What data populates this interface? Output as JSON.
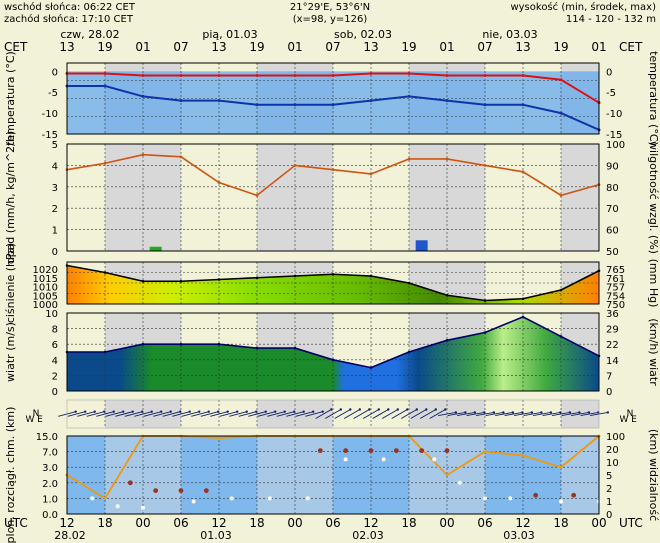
{
  "header": {
    "sunrise": "wschód słońca: 06:22 CET",
    "sunset": "zachód słońca: 17:10 CET",
    "coords": "21°29'E, 53°6'N",
    "grid": "(x=98, y=126)",
    "elevation_label": "wysokość (min, środek, max)",
    "elevation_values": "114 - 120 - 132 m"
  },
  "top_axis": {
    "tz": "CET",
    "days": [
      "czw, 28.02",
      "pią, 01.03",
      "sob, 02.03",
      "nie, 03.03"
    ],
    "hours": [
      "13",
      "19",
      "01",
      "07",
      "13",
      "19",
      "01",
      "07",
      "13",
      "19",
      "01",
      "07",
      "13",
      "19",
      "01"
    ]
  },
  "bottom_axis": {
    "tz": "UTC",
    "hours": [
      "12",
      "18",
      "00",
      "06",
      "12",
      "18",
      "00",
      "06",
      "12",
      "18",
      "00",
      "06",
      "12",
      "18",
      "00"
    ],
    "dates": [
      "28.02",
      "01.03",
      "02.03",
      "03.03"
    ]
  },
  "chart_data": [
    {
      "type": "line",
      "panel": "temperature",
      "ylabel": "temperatura (°C)",
      "ylim": [
        -15,
        2
      ],
      "ticks": [
        "0",
        "-5",
        "-10",
        "-15"
      ],
      "x_hours": [
        0,
        6,
        12,
        18,
        24,
        30,
        36,
        42,
        48,
        54,
        60,
        66,
        72,
        78,
        84
      ],
      "series": [
        {
          "values": [
            -0.5,
            -0.5,
            -1,
            -1,
            -1,
            -1,
            -1,
            -1,
            -0.5,
            -0.5,
            -1,
            -1,
            -1,
            -2,
            -7.5
          ]
        },
        {
          "values": [
            -3.5,
            -3.5,
            -6,
            -7,
            -7,
            -8,
            -8,
            -8,
            -7,
            -6,
            -7,
            -8,
            -8,
            -10,
            -14
          ]
        }
      ]
    },
    {
      "type": "line",
      "panel": "precipitation-humidity",
      "ylabel": "opad (mm/h, kg/m^2/h)",
      "ylabel_right": "wilgotność wzgl. (%)",
      "ylim": [
        0,
        5
      ],
      "ylim_right": [
        50,
        100
      ],
      "ticks_left": [
        "0",
        "1",
        "2",
        "3",
        "4",
        "5"
      ],
      "ticks_right": [
        "50",
        "60",
        "70",
        "80",
        "90",
        "100"
      ],
      "x_hours": [
        0,
        6,
        12,
        18,
        24,
        30,
        36,
        42,
        48,
        54,
        60,
        66,
        72,
        78,
        84
      ],
      "series": [
        {
          "values": [
            88,
            91,
            95,
            94,
            82,
            76,
            90,
            88,
            86,
            93,
            93,
            90,
            87,
            76,
            81
          ]
        }
      ],
      "precipitation_bars": [
        {
          "x": 14,
          "value": 0.2
        },
        {
          "x": 56,
          "value": 0.5
        }
      ]
    },
    {
      "type": "area",
      "panel": "pressure",
      "ylabel": "ciśnienie (hPa)",
      "ylabel_right": "(mm Hg)",
      "ylim": [
        1000,
        1024
      ],
      "ticks_left": [
        "1020",
        "1015",
        "1010",
        "1005",
        "1000"
      ],
      "ticks_right": [
        "765",
        "761",
        "757",
        "754",
        "750"
      ],
      "x_hours": [
        0,
        6,
        12,
        18,
        24,
        30,
        36,
        42,
        48,
        54,
        60,
        66,
        72,
        78,
        84
      ],
      "series": [
        {
          "values": [
            1022,
            1018,
            1013,
            1013,
            1014,
            1015,
            1016,
            1017,
            1016,
            1012,
            1005,
            1002,
            1003,
            1008,
            1019
          ]
        }
      ]
    },
    {
      "type": "area",
      "panel": "wind",
      "ylabel": "wiatr (m/s)",
      "ylabel_right": "(km/h) wiatr",
      "ylim": [
        0,
        10
      ],
      "ticks_left": [
        "0",
        "2",
        "4",
        "6",
        "8",
        "10"
      ],
      "ticks_right": [
        "0",
        "7",
        "14",
        "22",
        "29",
        "36"
      ],
      "x_hours": [
        0,
        6,
        12,
        18,
        24,
        30,
        36,
        42,
        48,
        54,
        60,
        66,
        72,
        78,
        84
      ],
      "series": [
        {
          "values": [
            5,
            5,
            6,
            6,
            6,
            5.5,
            5.5,
            4,
            3,
            5,
            6.5,
            7.5,
            9.5,
            7,
            4.5
          ]
        }
      ]
    },
    {
      "type": "line",
      "panel": "clouds-visibility",
      "ylabel": "plon. rozciągł. chm. (km)",
      "ylabel_right": "(km) widzialność",
      "ylim": [
        0,
        15
      ],
      "ticks_left": [
        "0.0",
        "1.0",
        "2.0",
        "3.0",
        "7.0",
        "15.0"
      ],
      "ticks_right": [
        "0",
        "1",
        "2",
        "5",
        "10",
        "20",
        "100"
      ],
      "x_hours": [
        0,
        6,
        12,
        18,
        24,
        30,
        36,
        42,
        48,
        54,
        60,
        66,
        72,
        78,
        84
      ],
      "series": [
        {
          "values": [
            2.5,
            1.0,
            15,
            15,
            14,
            15,
            15,
            15,
            15,
            15,
            2.5,
            7,
            6,
            3,
            15
          ]
        }
      ]
    }
  ]
}
